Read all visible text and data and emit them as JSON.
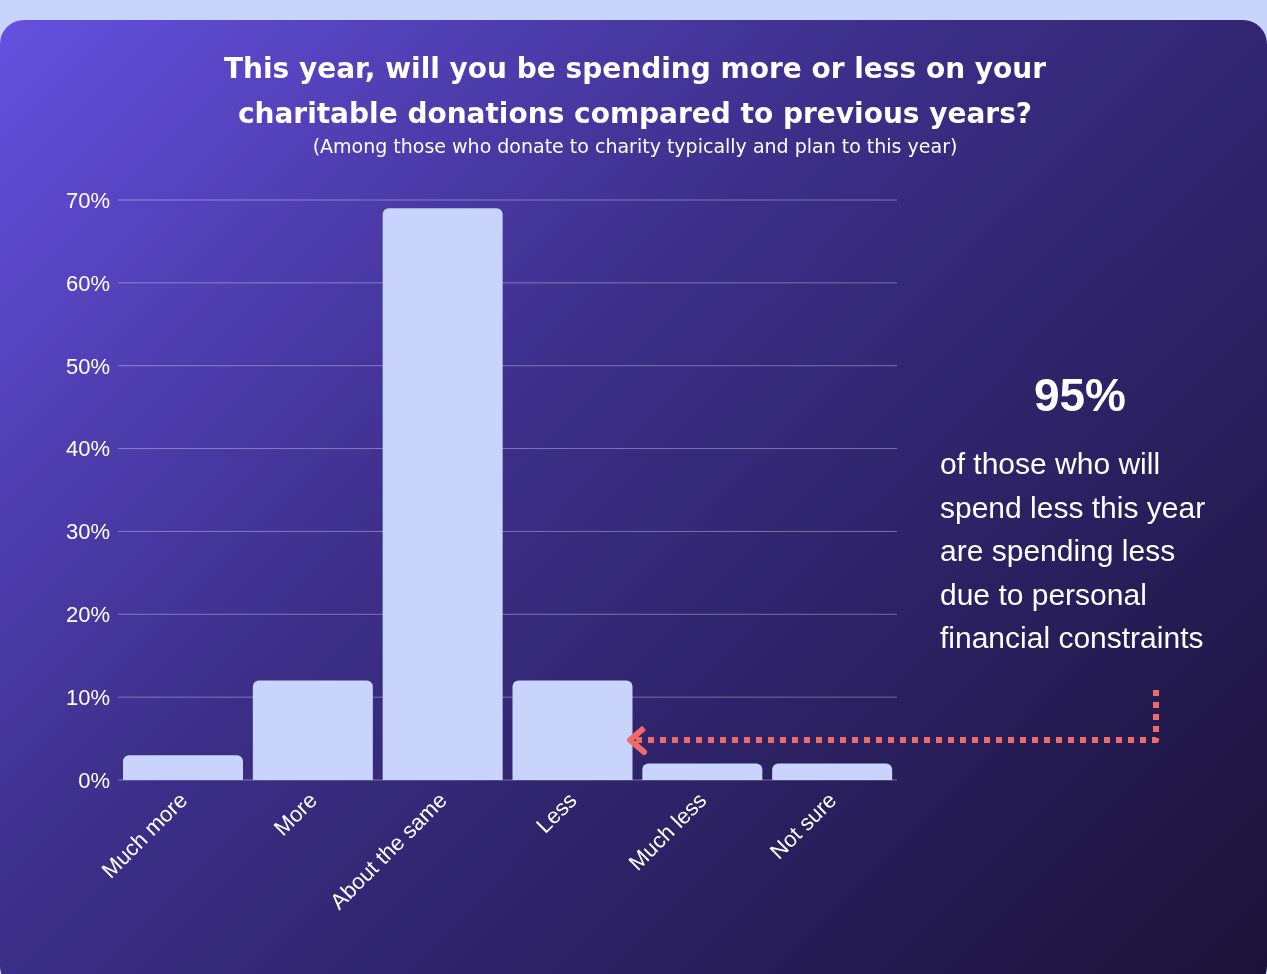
{
  "chart_data": {
    "type": "bar",
    "title": "This year, will you be spending more or less on your charitable donations compared to previous years?",
    "subtitle": "(Among those who donate to charity typically and plan to this year)",
    "categories": [
      "Much more",
      "More",
      "About the same",
      "Less",
      "Much less",
      "Not sure"
    ],
    "values": [
      3,
      12,
      69,
      12,
      2,
      2
    ],
    "color": "#c8d4fc",
    "ylim": [
      0,
      70
    ],
    "yticks": [
      {
        "value": 0,
        "label": "0%"
      },
      {
        "value": 10,
        "label": "10%"
      },
      {
        "value": 20,
        "label": "20%"
      },
      {
        "value": 30,
        "label": "30%"
      },
      {
        "value": 40,
        "label": "40%"
      },
      {
        "value": 50,
        "label": "50%"
      },
      {
        "value": 60,
        "label": "60%"
      },
      {
        "value": 70,
        "label": "70%"
      }
    ],
    "grid": "y",
    "annotations": [
      "95%",
      "of those who will spend less this year are spending less due to personal financial constraints"
    ]
  }
}
